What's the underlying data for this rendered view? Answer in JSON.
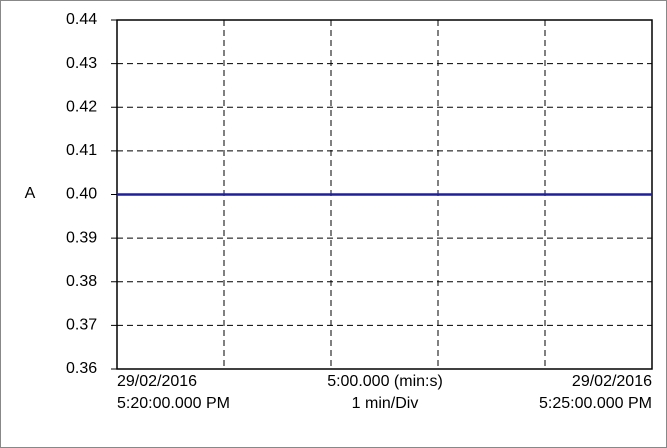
{
  "chart_data": {
    "type": "line",
    "y_label": "A",
    "x_labels": {
      "start": [
        "29/02/2016",
        "5:20:00.000 PM"
      ],
      "middle": [
        "5:00.000 (min:s)",
        "1 min/Div"
      ],
      "end": [
        "29/02/2016",
        "5:25:00.000 PM"
      ]
    },
    "x": [
      0,
      5
    ],
    "values": [
      0.4,
      0.4
    ],
    "color": "#1f1f9e",
    "xlim": [
      0,
      5
    ],
    "xticks": [
      0,
      1,
      2,
      3,
      4,
      5
    ],
    "ylim": [
      0.36,
      0.44
    ],
    "yticks": [
      0.36,
      0.37,
      0.38,
      0.39,
      {
        "value": 0.4,
        "label": "0.40"
      },
      0.41,
      0.42,
      0.43,
      0.44
    ],
    "grid": true
  }
}
